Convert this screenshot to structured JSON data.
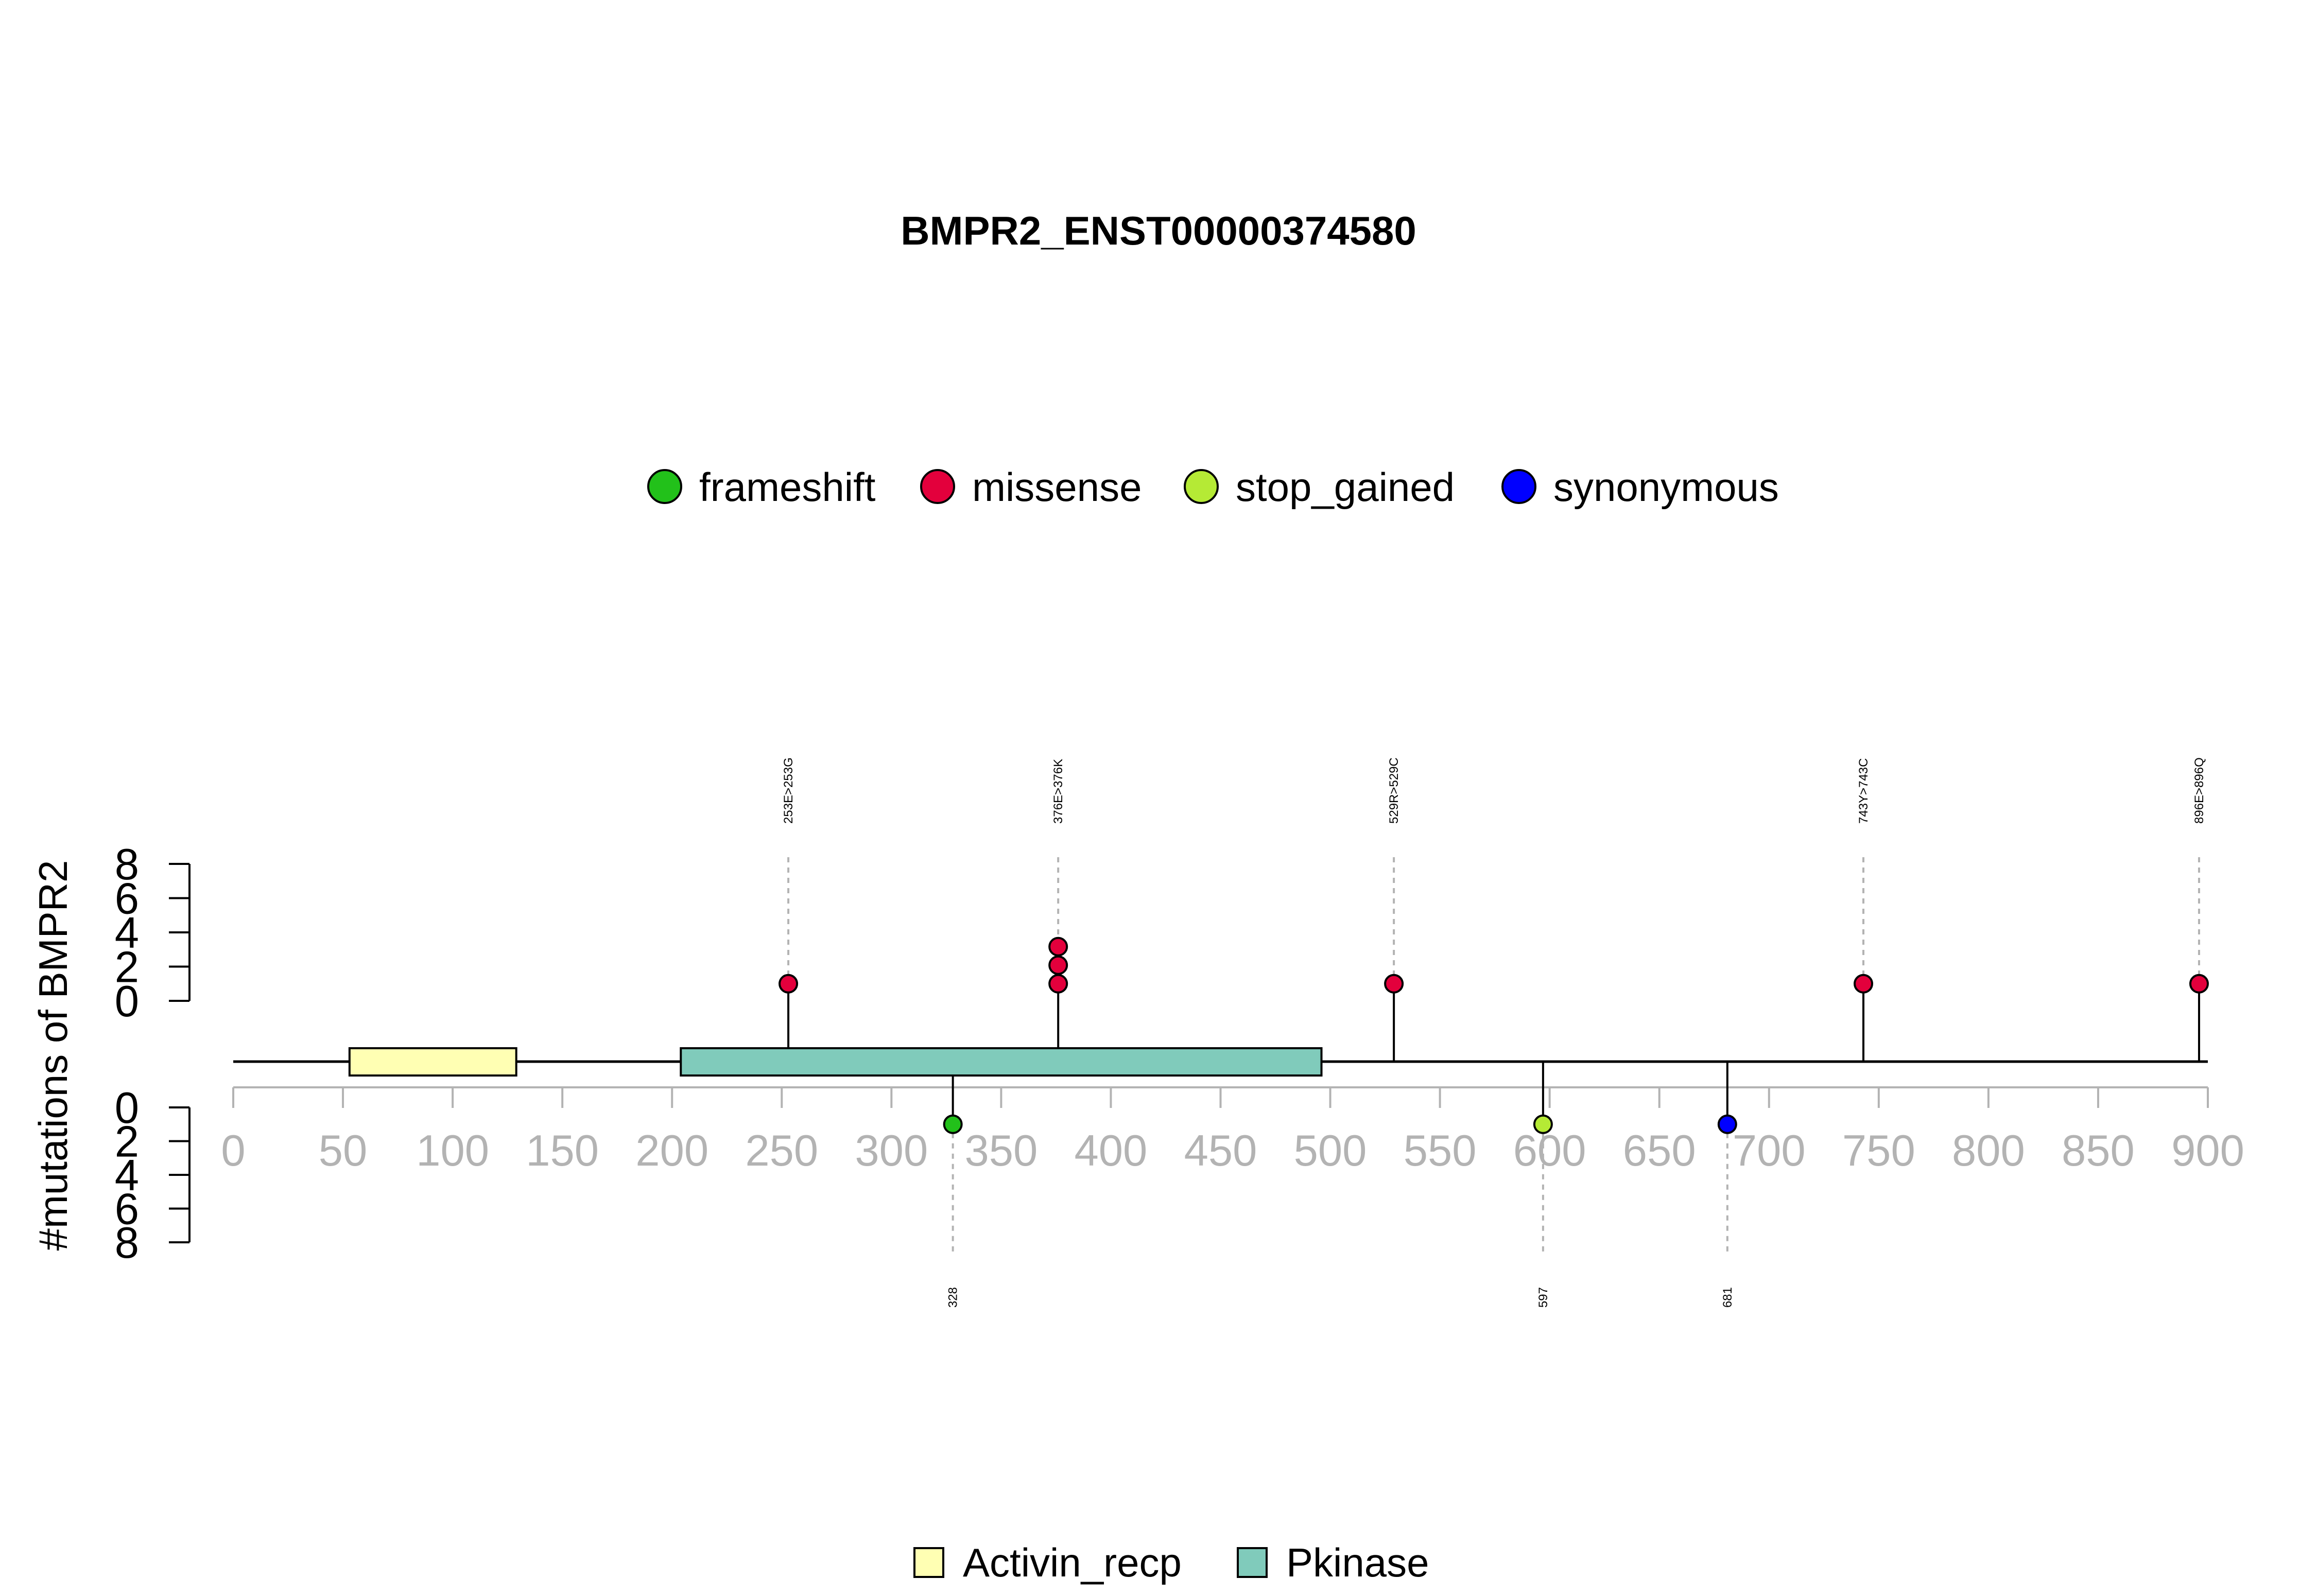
{
  "chart_data": {
    "type": "lollipop",
    "title": "BMPR2_ENST00000374580",
    "ylabel": "#mutations of BMPR2",
    "xlim": [
      0,
      900
    ],
    "x_ticks": [
      0,
      50,
      100,
      150,
      200,
      250,
      300,
      350,
      400,
      450,
      500,
      550,
      600,
      650,
      700,
      750,
      800,
      850,
      900
    ],
    "y_ticks": [
      0,
      2,
      4,
      6,
      8
    ],
    "ylim": [
      0,
      8
    ],
    "mutation_legend": [
      {
        "label": "frameshift",
        "color": "#22c11a"
      },
      {
        "label": "missense",
        "color": "#e3003c"
      },
      {
        "label": "stop_gained",
        "color": "#b5ea35"
      },
      {
        "label": "synonymous",
        "color": "#0000ff"
      }
    ],
    "domain_legend": [
      {
        "label": "Activin_recp",
        "color": "#ffffb3"
      },
      {
        "label": "Pkinase",
        "color": "#80cbbb"
      }
    ],
    "domains": [
      {
        "name": "Activin_recp",
        "start": 53,
        "end": 129,
        "color": "#ffffb3"
      },
      {
        "name": "Pkinase",
        "start": 204,
        "end": 496,
        "color": "#80cbbb"
      }
    ],
    "mutations": [
      {
        "position": 253,
        "label": "253E>253G",
        "type": "missense",
        "count": 1,
        "side": "top"
      },
      {
        "position": 376,
        "label": "376E>376K",
        "type": "missense",
        "count": 3,
        "side": "top"
      },
      {
        "position": 529,
        "label": "529R>529C",
        "type": "missense",
        "count": 1,
        "side": "top"
      },
      {
        "position": 743,
        "label": "743Y>743C",
        "type": "missense",
        "count": 1,
        "side": "top"
      },
      {
        "position": 896,
        "label": "896E>896Q",
        "type": "missense",
        "count": 1,
        "side": "top"
      },
      {
        "position": 328,
        "label": "328",
        "type": "frameshift",
        "count": 1,
        "side": "bottom"
      },
      {
        "position": 597,
        "label": "597",
        "type": "stop_gained",
        "count": 1,
        "side": "bottom"
      },
      {
        "position": 681,
        "label": "681",
        "type": "synonymous",
        "count": 1,
        "side": "bottom"
      }
    ]
  }
}
